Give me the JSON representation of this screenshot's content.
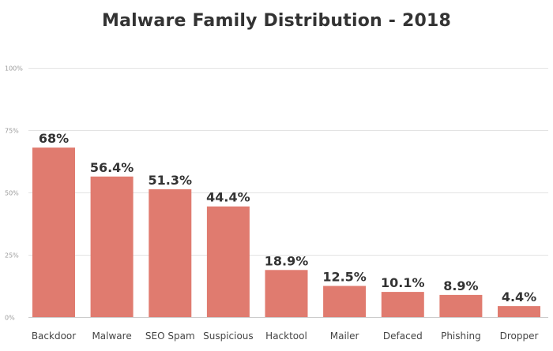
{
  "chart_data": {
    "type": "bar",
    "title": "Malware Family Distribution - 2018",
    "xlabel": "",
    "ylabel": "",
    "categories": [
      "Backdoor",
      "Malware",
      "SEO Spam",
      "Suspicious",
      "Hacktool",
      "Mailer",
      "Defaced",
      "Phishing",
      "Dropper"
    ],
    "values": [
      68,
      56.4,
      51.3,
      44.4,
      18.9,
      12.5,
      10.1,
      8.9,
      4.4
    ],
    "value_labels": [
      "68%",
      "56.4%",
      "51.3%",
      "44.4%",
      "18.9%",
      "12.5%",
      "10.1%",
      "8.9%",
      "4.4%"
    ],
    "ylim": [
      0,
      100
    ],
    "yticks": [
      0,
      25,
      50,
      75,
      100
    ],
    "ytick_labels": [
      "0%",
      "25%",
      "50%",
      "75%",
      "100%"
    ],
    "grid": true,
    "legend": "none",
    "bar_color": "#e07b6f"
  }
}
